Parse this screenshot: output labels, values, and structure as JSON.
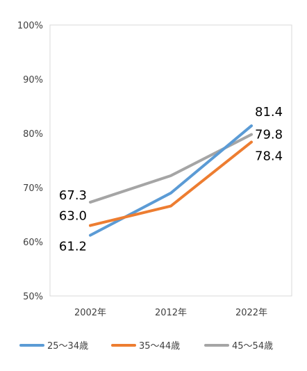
{
  "chart_data": {
    "type": "line",
    "categories": [
      "2002年",
      "2012年",
      "2022年"
    ],
    "series": [
      {
        "name": "25〜34歳",
        "values": [
          61.2,
          69.0,
          81.4
        ],
        "color": "#5B9BD5",
        "labels": [
          "61.2",
          "",
          "81.4"
        ]
      },
      {
        "name": "35〜44歳",
        "values": [
          63.0,
          66.6,
          78.4
        ],
        "color": "#ED7D31",
        "labels": [
          "63.0",
          "",
          "78.4"
        ]
      },
      {
        "name": "45〜54歳",
        "values": [
          67.3,
          72.2,
          79.8
        ],
        "color": "#A5A5A5",
        "labels": [
          "67.3",
          "",
          "79.8"
        ]
      }
    ],
    "yticks": [
      "50%",
      "60%",
      "70%",
      "80%",
      "90%",
      "100%"
    ],
    "ylim": [
      50,
      100
    ],
    "legend_position": "bottom",
    "grid": false
  }
}
